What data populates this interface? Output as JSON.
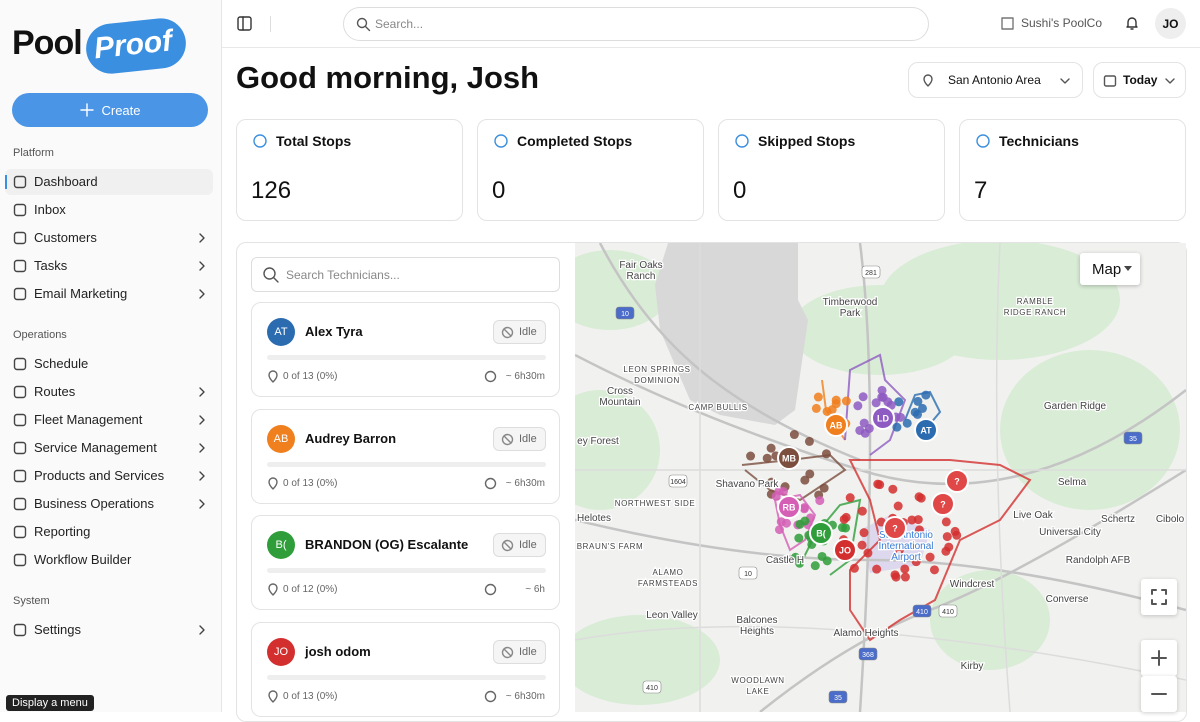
{
  "header": {
    "search_placeholder": "Search...",
    "company": "Sushi's PoolCo",
    "user_initials": "JO"
  },
  "sidebar": {
    "logo": [
      "Pool",
      "Proof"
    ],
    "create": "Create",
    "sections": [
      {
        "title": "Platform",
        "items": [
          {
            "label": "Dashboard",
            "active": true,
            "chevron": false
          },
          {
            "label": "Inbox",
            "active": false,
            "chevron": false
          },
          {
            "label": "Customers",
            "active": false,
            "chevron": true
          },
          {
            "label": "Tasks",
            "active": false,
            "chevron": true
          },
          {
            "label": "Email Marketing",
            "active": false,
            "chevron": true
          }
        ]
      },
      {
        "title": "Operations",
        "items": [
          {
            "label": "Schedule",
            "active": false,
            "chevron": false
          },
          {
            "label": "Routes",
            "active": false,
            "chevron": true
          },
          {
            "label": "Fleet Management",
            "active": false,
            "chevron": true
          },
          {
            "label": "Service Management",
            "active": false,
            "chevron": true
          },
          {
            "label": "Products and Services",
            "active": false,
            "chevron": true
          },
          {
            "label": "Business Operations",
            "active": false,
            "chevron": true
          },
          {
            "label": "Reporting",
            "active": false,
            "chevron": false
          },
          {
            "label": "Workflow Builder",
            "active": false,
            "chevron": false
          }
        ]
      },
      {
        "title": "System",
        "items": [
          {
            "label": "Settings",
            "active": false,
            "chevron": true
          }
        ]
      }
    ],
    "tooltip": "Display a menu"
  },
  "page": {
    "greeting": "Good morning, Josh",
    "location": "San Antonio Area",
    "date_range": "Today"
  },
  "stats": [
    {
      "title": "Total Stops",
      "value": "126"
    },
    {
      "title": "Completed Stops",
      "value": "0"
    },
    {
      "title": "Skipped Stops",
      "value": "0"
    },
    {
      "title": "Technicians",
      "value": "7"
    }
  ],
  "technicians": {
    "search_placeholder": "Search Technicians...",
    "items": [
      {
        "initials": "AT",
        "name": "Alex Tyra",
        "color": "#2b6cb0",
        "status": "Idle",
        "progress": "0 of 13 (0%)",
        "duration": "~ 6h30m"
      },
      {
        "initials": "AB",
        "name": "Audrey Barron",
        "color": "#f07f1d",
        "status": "Idle",
        "progress": "0 of 13 (0%)",
        "duration": "~ 6h30m"
      },
      {
        "initials": "B(",
        "name": "BRANDON (OG) Escalante",
        "color": "#2f9e3a",
        "status": "Idle",
        "progress": "0 of 12 (0%)",
        "duration": "~ 6h"
      },
      {
        "initials": "JO",
        "name": "josh odom",
        "color": "#d32f2f",
        "status": "Idle",
        "progress": "0 of 13 (0%)",
        "duration": "~ 6h30m"
      }
    ]
  },
  "map": {
    "button": "Map",
    "labels": [
      {
        "lines": [
          "Fair Oaks",
          "Ranch"
        ]
      },
      {
        "lines": [
          "Timberwood",
          "Park"
        ]
      },
      {
        "lines": [
          "RAMBLE",
          "RIDGE RANCH"
        ]
      },
      {
        "lines": [
          "LEON SPRINGS",
          "DOMINION"
        ]
      },
      {
        "lines": [
          "Cross",
          "Mountain"
        ]
      },
      {
        "lines": [
          "CAMP BULLIS"
        ]
      },
      {
        "lines": [
          "Garden Ridge"
        ]
      },
      {
        "lines": [
          "ey Forest"
        ]
      },
      {
        "lines": [
          "Shavano Park"
        ]
      },
      {
        "lines": [
          "Selma"
        ]
      },
      {
        "lines": [
          "NORTHWEST SIDE"
        ]
      },
      {
        "lines": [
          "Helotes"
        ]
      },
      {
        "lines": [
          "Live Oak"
        ]
      },
      {
        "lines": [
          "Schertz"
        ]
      },
      {
        "lines": [
          "Cibolo"
        ]
      },
      {
        "lines": [
          "Universal City"
        ]
      },
      {
        "lines": [
          "BRAUN'S FARM"
        ]
      },
      {
        "lines": [
          "San Antonio",
          "International",
          "Airport"
        ]
      },
      {
        "lines": [
          "ALAMO",
          "FARMSTEADS"
        ]
      },
      {
        "lines": [
          "Castle H"
        ]
      },
      {
        "lines": [
          "Randolph AFB"
        ]
      },
      {
        "lines": [
          "Windcrest"
        ]
      },
      {
        "lines": [
          "Converse"
        ]
      },
      {
        "lines": [
          "Leon Valley"
        ]
      },
      {
        "lines": [
          "Balcones",
          "Heights"
        ]
      },
      {
        "lines": [
          "Alamo Heights"
        ]
      },
      {
        "lines": [
          "Kirby"
        ]
      },
      {
        "lines": [
          "WOODLAWN",
          "LAKE"
        ]
      }
    ],
    "shields": [
      "281",
      "10",
      "1604",
      "35",
      "10",
      "410",
      "410",
      "368",
      "410",
      "35"
    ],
    "markers": [
      {
        "initials": "AT",
        "color": "#2b6cb0"
      },
      {
        "initials": "AB",
        "color": "#f07f1d"
      },
      {
        "initials": "LD",
        "color": "#8e5bc2"
      },
      {
        "initials": "MB",
        "color": "#7b4e3e"
      },
      {
        "initials": "RB",
        "color": "#d45fb5"
      },
      {
        "initials": "B(",
        "color": "#2f9e3a"
      },
      {
        "initials": "JO",
        "color": "#d32f2f"
      },
      {
        "initials": "?",
        "color": "#e04848"
      },
      {
        "initials": "?",
        "color": "#e04848"
      },
      {
        "initials": "?",
        "color": "#e04848"
      }
    ]
  }
}
